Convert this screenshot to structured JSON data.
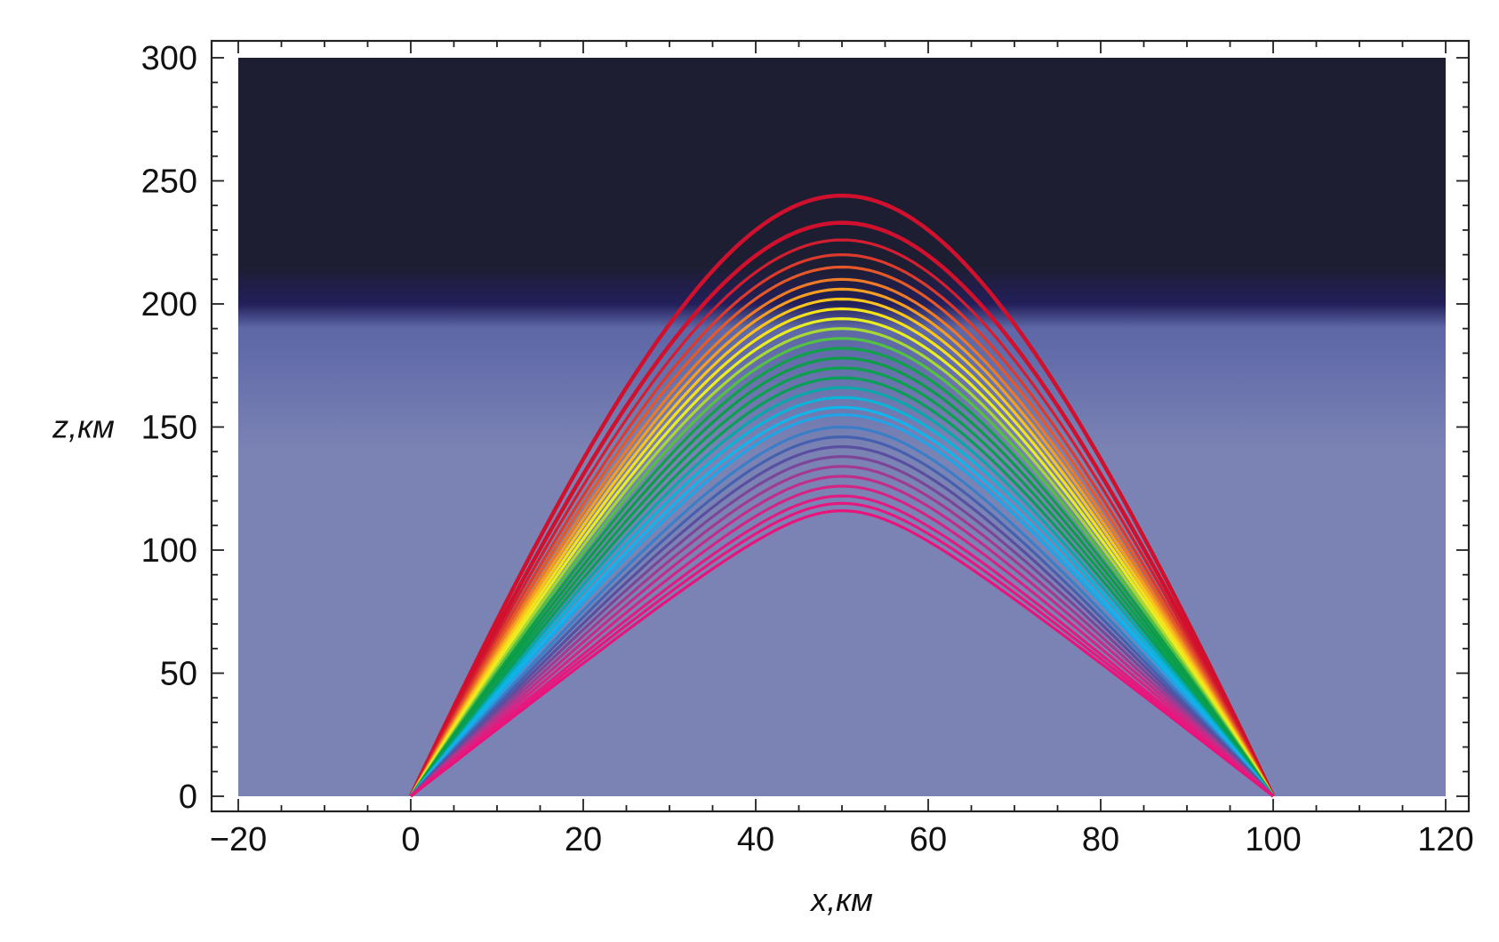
{
  "chart_data": {
    "type": "line",
    "title": "",
    "xlabel": "x,км",
    "ylabel": "z,км",
    "xlim": [
      -20,
      120
    ],
    "ylim": [
      0,
      300
    ],
    "x_ticks": [
      -20,
      0,
      20,
      40,
      60,
      80,
      100,
      120
    ],
    "y_ticks": [
      0,
      50,
      100,
      150,
      200,
      250,
      300
    ],
    "x_tick_labels": [
      "−20",
      "0",
      "20",
      "40",
      "60",
      "80",
      "100",
      "120"
    ],
    "y_tick_labels": [
      "0",
      "50",
      "100",
      "150",
      "200",
      "250",
      "300"
    ],
    "grid": false,
    "legend": "none",
    "background": {
      "description_layers_z": [
        0,
        185,
        200,
        300
      ],
      "colors": [
        "#7b83b4",
        "#5f69a8",
        "#221f5a",
        "#1e1e33"
      ]
    },
    "ray_paths": {
      "x_start": 0,
      "x_end": 100,
      "apex_x": 50,
      "apex_heights": [
        244,
        233,
        226,
        220,
        215,
        210,
        206,
        202,
        198,
        194,
        190,
        186,
        182,
        178,
        174,
        170,
        166,
        162,
        158,
        155,
        150,
        146,
        142,
        138,
        134,
        130,
        126,
        122,
        119,
        116
      ],
      "colors": [
        "#d0102c",
        "#d0102c",
        "#d41e30",
        "#dc3a2c",
        "#e4582a",
        "#ec7a26",
        "#f49e24",
        "#fac41e",
        "#f6e21a",
        "#e8ee22",
        "#a6d836",
        "#52c042",
        "#10a04a",
        "#0c9c48",
        "#0aa04e",
        "#089e58",
        "#0aa6a8",
        "#0ab4d8",
        "#12b4ec",
        "#20a4e6",
        "#3a7ec8",
        "#4560ae",
        "#5a4ea0",
        "#7c4698",
        "#a23a90",
        "#c02e8a",
        "#d42484",
        "#e01c80",
        "#e6187e",
        "#e8147c"
      ]
    }
  }
}
